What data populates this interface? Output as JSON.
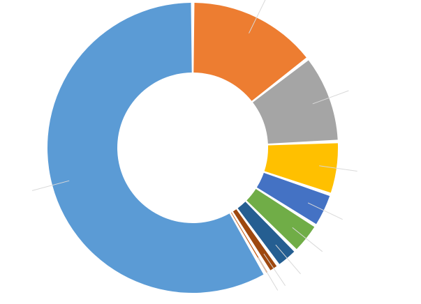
{
  "chart_data": {
    "type": "doughnut",
    "values": [
      14.5,
      9.8,
      5.9,
      3.8,
      3.5,
      2.5,
      1.2,
      0.5,
      58.3
    ],
    "colors": [
      "#ed7d31",
      "#a5a5a5",
      "#ffc000",
      "#4472c4",
      "#70ad47",
      "#255e91",
      "#9e480e",
      "#c55a11",
      "#5b9bd5"
    ]
  }
}
